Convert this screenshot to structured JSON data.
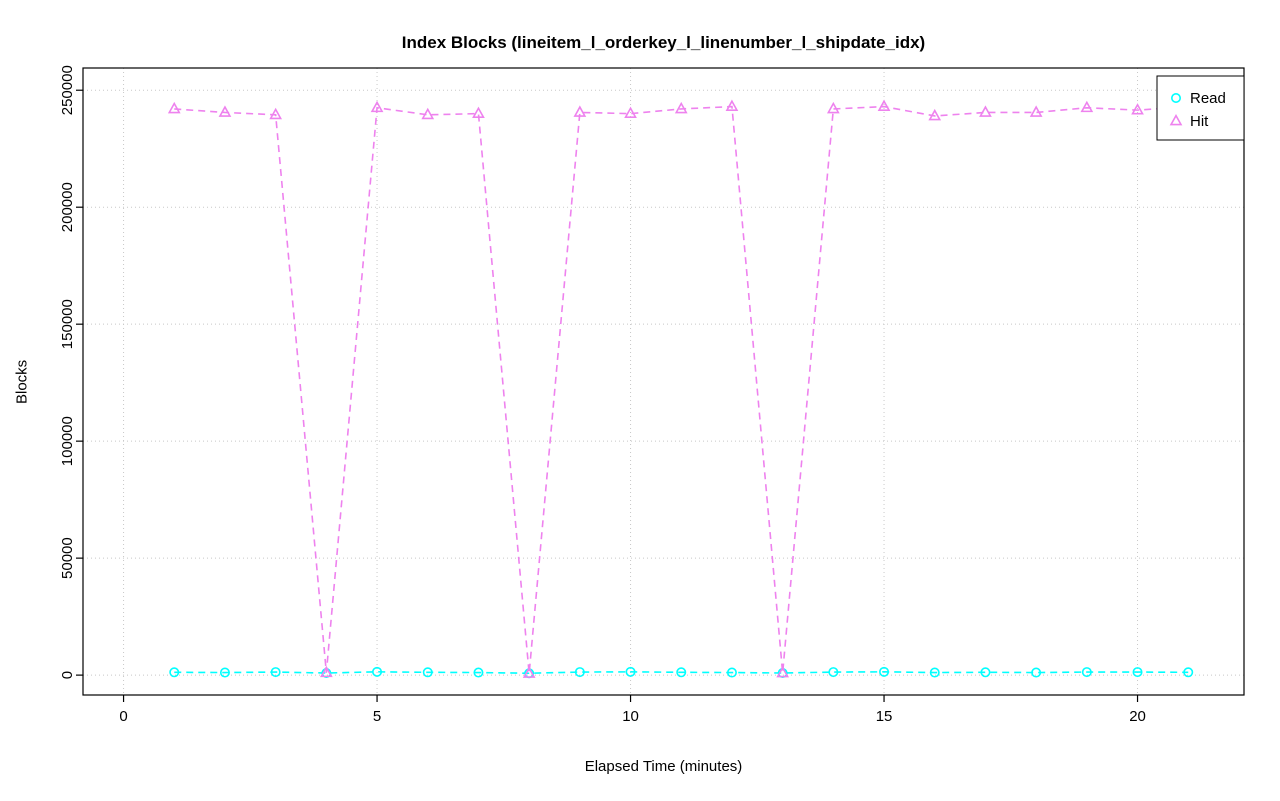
{
  "title": "Index Blocks (lineitem_l_orderkey_l_linenumber_l_shipdate_idx)",
  "chart_data": {
    "type": "line",
    "title": "Index Blocks (lineitem_l_orderkey_l_linenumber_l_shipdate_idx)",
    "xlabel": "Elapsed Time (minutes)",
    "ylabel": "Blocks",
    "xticks": [
      0,
      5,
      10,
      15,
      20
    ],
    "yticks": [
      0,
      50000,
      100000,
      150000,
      200000,
      250000
    ],
    "xlim": [
      -0.8,
      22.1
    ],
    "ylim": [
      -8500,
      259500
    ],
    "grid": true,
    "legend": {
      "position": "top-right",
      "entries": [
        {
          "label": "Read",
          "color": "#00FFFF",
          "marker": "circle"
        },
        {
          "label": "Hit",
          "color": "#EE82EE",
          "marker": "triangle"
        }
      ]
    },
    "x": [
      1,
      2,
      3,
      4,
      5,
      6,
      7,
      8,
      9,
      10,
      11,
      12,
      13,
      14,
      15,
      16,
      17,
      18,
      19,
      20,
      21
    ],
    "series": [
      {
        "name": "Read",
        "color": "#00FFFF",
        "marker": "circle",
        "linestyle": "dashed",
        "values": [
          1200,
          1100,
          1300,
          900,
          1400,
          1200,
          1100,
          800,
          1300,
          1400,
          1200,
          1100,
          900,
          1300,
          1400,
          1100,
          1200,
          1100,
          1300,
          1300,
          1200
        ]
      },
      {
        "name": "Hit",
        "color": "#EE82EE",
        "marker": "triangle",
        "linestyle": "dashed",
        "values": [
          242000,
          240500,
          239500,
          1000,
          242500,
          239500,
          240000,
          700,
          240500,
          240000,
          242000,
          243000,
          900,
          242000,
          243000,
          239000,
          240500,
          240500,
          242500,
          241500,
          243000
        ]
      }
    ]
  }
}
